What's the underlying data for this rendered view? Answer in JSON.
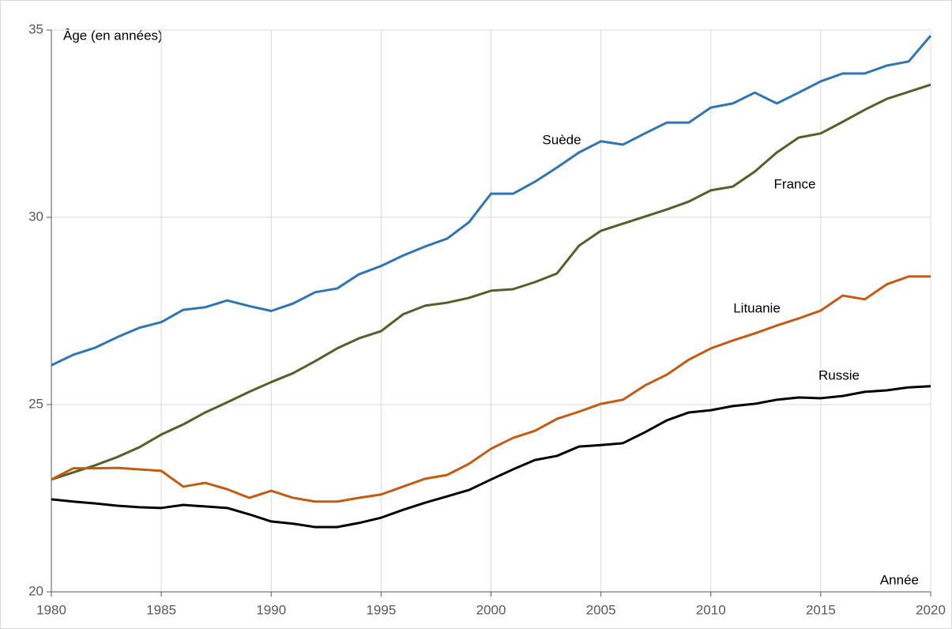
{
  "chart_data": {
    "type": "line",
    "y_label": "Âge (en années)",
    "x_label": "Année",
    "x": [
      1980,
      1981,
      1982,
      1983,
      1984,
      1985,
      1986,
      1987,
      1988,
      1989,
      1990,
      1991,
      1992,
      1993,
      1994,
      1995,
      1996,
      1997,
      1998,
      1999,
      2000,
      2001,
      2002,
      2003,
      2004,
      2005,
      2006,
      2007,
      2008,
      2009,
      2010,
      2011,
      2012,
      2013,
      2014,
      2015,
      2016,
      2017,
      2018,
      2019,
      2020
    ],
    "series": [
      {
        "name": "Suède",
        "color": "#2e75b6",
        "values": [
          26.05,
          26.33,
          26.52,
          26.8,
          27.05,
          27.2,
          27.53,
          27.6,
          27.78,
          27.63,
          27.5,
          27.7,
          28.0,
          28.1,
          28.48,
          28.7,
          28.98,
          29.22,
          29.43,
          29.87,
          30.63,
          30.63,
          30.95,
          31.33,
          31.73,
          32.03,
          31.94,
          32.24,
          32.53,
          32.53,
          32.93,
          33.04,
          33.33,
          33.04,
          33.33,
          33.63,
          33.84,
          33.84,
          34.05,
          34.16,
          34.85
        ]
      },
      {
        "name": "France",
        "color": "#4f6228",
        "values": [
          23.0,
          23.19,
          23.38,
          23.6,
          23.86,
          24.2,
          24.47,
          24.79,
          25.06,
          25.34,
          25.6,
          25.84,
          26.16,
          26.5,
          26.77,
          26.96,
          27.41,
          27.64,
          27.72,
          27.85,
          28.04,
          28.08,
          28.27,
          28.5,
          29.24,
          29.64,
          29.83,
          30.02,
          30.21,
          30.42,
          30.72,
          30.82,
          31.22,
          31.73,
          32.13,
          32.24,
          32.55,
          32.87,
          33.16,
          33.35,
          33.54
        ]
      },
      {
        "name": "Lituanie",
        "color": "#c55a11",
        "values": [
          23.0,
          23.3,
          23.3,
          23.31,
          23.27,
          23.23,
          22.81,
          22.91,
          22.74,
          22.51,
          22.7,
          22.51,
          22.41,
          22.41,
          22.51,
          22.6,
          22.81,
          23.02,
          23.12,
          23.42,
          23.82,
          24.11,
          24.3,
          24.62,
          24.81,
          25.02,
          25.13,
          25.51,
          25.8,
          26.2,
          26.5,
          26.71,
          26.9,
          27.11,
          27.3,
          27.51,
          27.91,
          27.81,
          28.21,
          28.42,
          28.42
        ]
      },
      {
        "name": "Russie",
        "color": "#000000",
        "values": [
          22.47,
          22.41,
          22.36,
          22.3,
          22.26,
          22.24,
          22.32,
          22.28,
          22.24,
          22.07,
          21.88,
          21.82,
          21.73,
          21.73,
          21.84,
          21.98,
          22.19,
          22.38,
          22.55,
          22.72,
          23.0,
          23.27,
          23.52,
          23.63,
          23.88,
          23.92,
          23.97,
          24.26,
          24.58,
          24.79,
          24.85,
          24.96,
          25.02,
          25.13,
          25.19,
          25.17,
          25.23,
          25.34,
          25.38,
          25.46,
          25.49
        ]
      }
    ],
    "xlim": [
      1980,
      2020
    ],
    "xticks": [
      1980,
      1985,
      1990,
      1995,
      2000,
      2005,
      2010,
      2015,
      2020
    ],
    "ylim": [
      20,
      35
    ],
    "yticks": [
      20,
      25,
      30,
      35
    ],
    "grid": true
  }
}
